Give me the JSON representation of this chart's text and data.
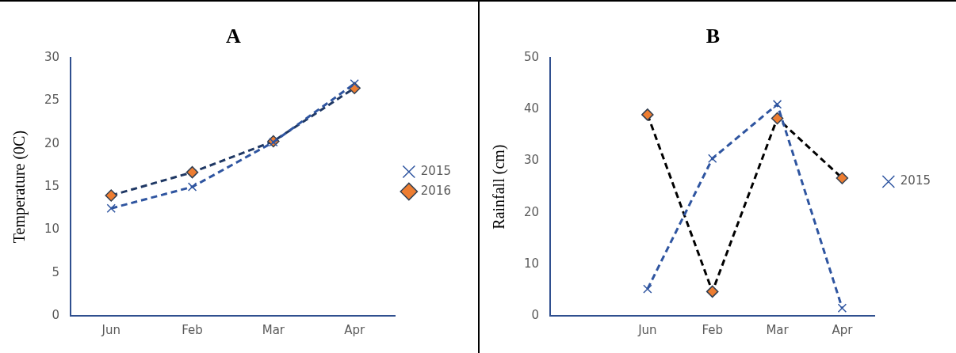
{
  "chart_data": [
    {
      "type": "line",
      "title": "A",
      "ylabel": "Temperature (0C)",
      "categories": [
        "Jun",
        "Feb",
        "Mar",
        "Apr"
      ],
      "ylim": [
        0,
        30
      ],
      "yticks": [
        0,
        5,
        10,
        15,
        20,
        25,
        30
      ],
      "grid": false,
      "legend": "right",
      "series": [
        {
          "name": "2015",
          "color": "#2f55a0",
          "marker": "cross",
          "line_style": "dashed",
          "values": [
            12.5,
            15,
            20.2,
            27
          ]
        },
        {
          "name": "2016",
          "color": "#1f3864",
          "marker": "diamond",
          "line_style": "dashed",
          "values": [
            14,
            16.7,
            20.3,
            26.5
          ]
        }
      ]
    },
    {
      "type": "line",
      "title": "B",
      "ylabel": "Rainfall (cm)",
      "categories": [
        null,
        "Jun",
        "Feb",
        "Mar",
        "Apr"
      ],
      "ylim": [
        0,
        50
      ],
      "yticks": [
        0,
        10,
        20,
        30,
        40,
        50
      ],
      "grid": false,
      "legend": "right",
      "series": [
        {
          "name": "2015",
          "color": "#2f55a0",
          "marker": "cross",
          "line_style": "dashed",
          "values": [
            null,
            5.2,
            30.5,
            41,
            1.5
          ]
        },
        {
          "color": "#000000",
          "marker": "diamond",
          "line_style": "dashed",
          "values": [
            null,
            39,
            4.7,
            38.3,
            26.7
          ]
        }
      ]
    }
  ]
}
